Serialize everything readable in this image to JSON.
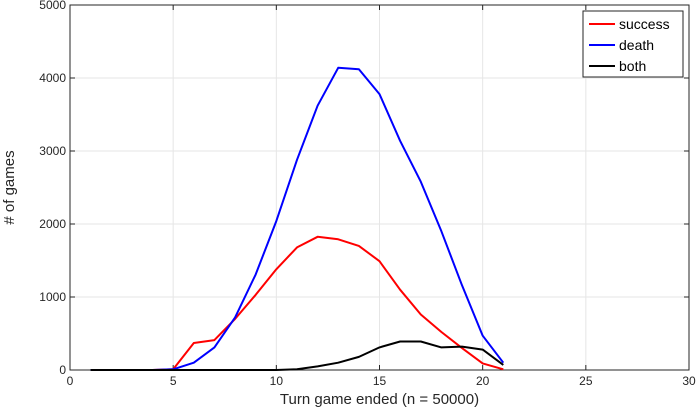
{
  "chart_data": {
    "type": "line",
    "title": "",
    "xlabel": "Turn game ended (n = 50000)",
    "ylabel": "# of games",
    "xlim": [
      0,
      30
    ],
    "ylim": [
      0,
      5000
    ],
    "xticks": [
      0,
      5,
      10,
      15,
      20,
      25,
      30
    ],
    "yticks": [
      0,
      1000,
      2000,
      3000,
      4000,
      5000
    ],
    "grid": true,
    "legend_position": "top-right",
    "series": [
      {
        "name": "success",
        "color": "#ff0000",
        "x": [
          1,
          2,
          3,
          4,
          5,
          6,
          7,
          8,
          9,
          10,
          11,
          12,
          13,
          14,
          15,
          16,
          17,
          18,
          19,
          20,
          21
        ],
        "y": [
          0,
          0,
          0,
          0,
          10,
          370,
          410,
          700,
          1030,
          1380,
          1680,
          1825,
          1790,
          1700,
          1490,
          1100,
          760,
          520,
          300,
          90,
          10
        ]
      },
      {
        "name": "death",
        "color": "#0000ff",
        "x": [
          1,
          2,
          3,
          4,
          5,
          6,
          7,
          8,
          9,
          10,
          11,
          12,
          13,
          14,
          15,
          16,
          17,
          18,
          19,
          20,
          21
        ],
        "y": [
          0,
          0,
          0,
          0,
          10,
          100,
          310,
          720,
          1310,
          2040,
          2880,
          3620,
          4140,
          4120,
          3780,
          3140,
          2580,
          1900,
          1160,
          470,
          100
        ]
      },
      {
        "name": "both",
        "color": "#000000",
        "x": [
          1,
          2,
          3,
          4,
          5,
          6,
          7,
          8,
          9,
          10,
          11,
          12,
          13,
          14,
          15,
          16,
          17,
          18,
          19,
          20,
          21
        ],
        "y": [
          0,
          0,
          0,
          0,
          0,
          0,
          0,
          0,
          0,
          0,
          10,
          50,
          100,
          180,
          310,
          390,
          390,
          310,
          320,
          280,
          70
        ]
      }
    ]
  }
}
